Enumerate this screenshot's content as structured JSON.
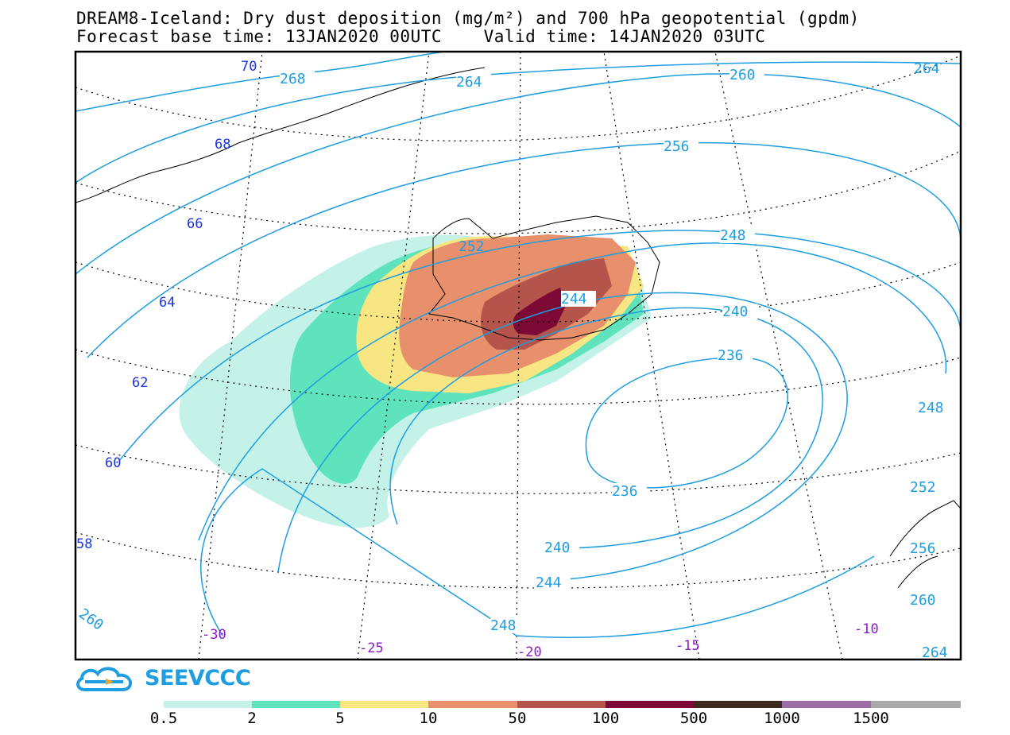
{
  "title": {
    "line1": "DREAM8-Iceland: Dry dust deposition (mg/m²) and 700 hPa geopotential (gpdm)",
    "line2": "Forecast base time: 13JAN2020 00UTC    Valid time: 14JAN2020 03UTC"
  },
  "logo": {
    "text": "SEEVCCC",
    "icon": "cloud-arrow-icon"
  },
  "colorbar": {
    "bins": [
      {
        "color": "#c4f2e8"
      },
      {
        "color": "#5fe3bd"
      },
      {
        "color": "#f7e682"
      },
      {
        "color": "#e88f6c"
      },
      {
        "color": "#b5544a"
      },
      {
        "color": "#7d0a35"
      },
      {
        "color": "#3d2a1e"
      },
      {
        "color": "#9c6da5"
      },
      {
        "color": "#a9a9a9"
      }
    ],
    "labels": [
      "0.5",
      "2",
      "5",
      "10",
      "50",
      "100",
      "500",
      "1000",
      "1500"
    ]
  },
  "lat_labels": [
    "70",
    "68",
    "66",
    "64",
    "62",
    "60",
    "58"
  ],
  "lon_labels": [
    "-30",
    "-25",
    "-20",
    "-15",
    "-10"
  ],
  "contour_labels": [
    "268",
    "264",
    "264",
    "260",
    "256",
    "252",
    "248",
    "244",
    "240",
    "236",
    "236",
    "240",
    "244",
    "248",
    "248",
    "252",
    "256",
    "260",
    "260",
    "264"
  ],
  "colors": {
    "contour": "#1e9ee0",
    "lat_label": "#1a35e0",
    "lon_label": "#8a1ac8"
  }
}
